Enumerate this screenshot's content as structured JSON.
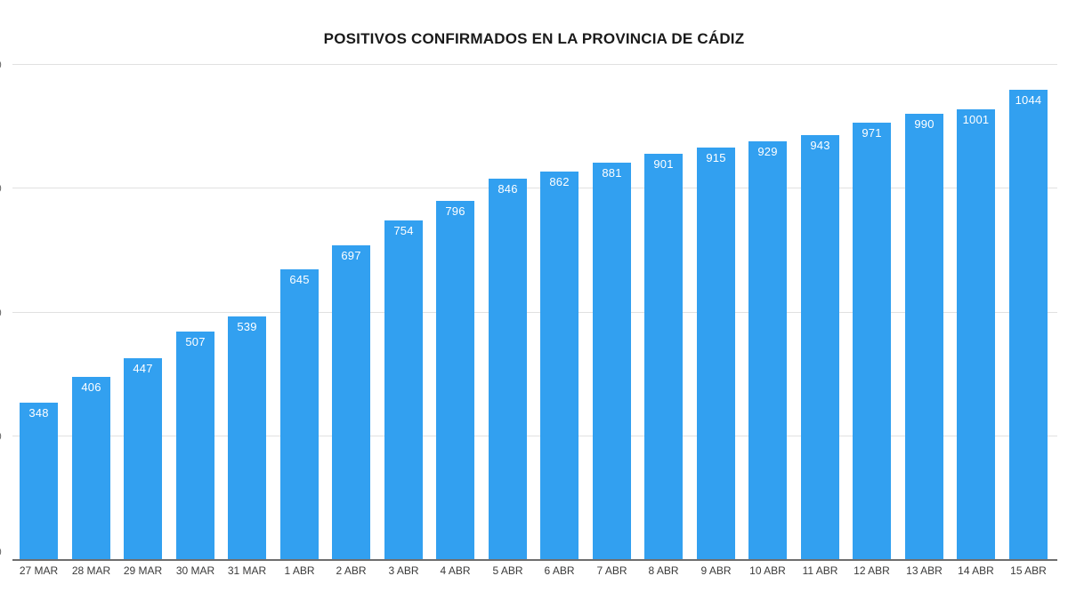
{
  "chart_data": {
    "type": "bar",
    "title": "POSITIVOS CONFIRMADOS EN LA PROVINCIA DE CÁDIZ",
    "xlabel": "",
    "ylabel": "",
    "categories": [
      "27 MAR",
      "28 MAR",
      "29 MAR",
      "30 MAR",
      "31 MAR",
      "1 ABR",
      "2 ABR",
      "3 ABR",
      "4 ABR",
      "5 ABR",
      "6 ABR",
      "7 ABR",
      "8 ABR",
      "9 ABR",
      "10 ABR",
      "11 ABR",
      "12 ABR",
      "13 ABR",
      "14 ABR",
      "15 ABR"
    ],
    "values": [
      348,
      406,
      447,
      507,
      539,
      645,
      697,
      754,
      796,
      846,
      862,
      881,
      901,
      915,
      929,
      943,
      971,
      990,
      1001,
      1044
    ],
    "value_labels_shown": true,
    "ylim": [
      0,
      1130
    ],
    "grid": true,
    "gridline_count": 4,
    "legend": false,
    "y_axis_labels": "cropped out of frame at left edge",
    "colors": {
      "bar": "#32a0f0",
      "value_label": "#ffffff",
      "gridline": "#e1e1e1",
      "axis_line": "#6e6e6e",
      "tick_label": "#3a3a3a",
      "title": "#1a1a1a",
      "background": "#ffffff"
    }
  }
}
